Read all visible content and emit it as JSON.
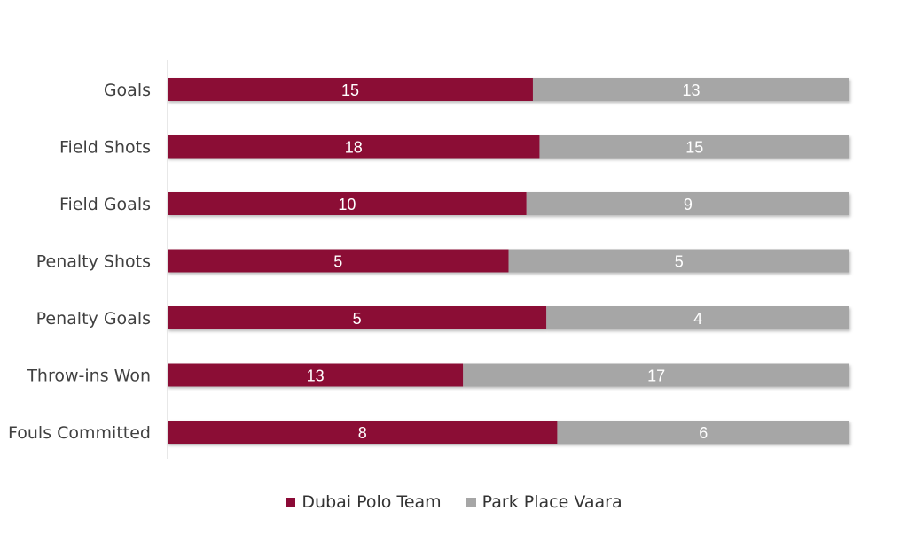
{
  "chart_data": {
    "type": "bar",
    "orientation": "horizontal",
    "stacked": true,
    "normalized_percent": true,
    "title": "",
    "xlabel": "",
    "ylabel": "",
    "xlim": [
      0,
      100
    ],
    "grid": false,
    "legend_position": "bottom",
    "categories": [
      "Goals",
      "Field Shots",
      "Field Goals",
      "Penalty Shots",
      "Penalty Goals",
      "Throw-ins Won",
      "Fouls Committed"
    ],
    "series": [
      {
        "name": "Dubai Polo Team",
        "color": "#8B0A36",
        "values": [
          15,
          18,
          10,
          5,
          5,
          13,
          8
        ]
      },
      {
        "name": "Park Place Vaara",
        "color": "#A6A6A6",
        "values": [
          13,
          15,
          9,
          5,
          4,
          17,
          6
        ]
      }
    ]
  }
}
